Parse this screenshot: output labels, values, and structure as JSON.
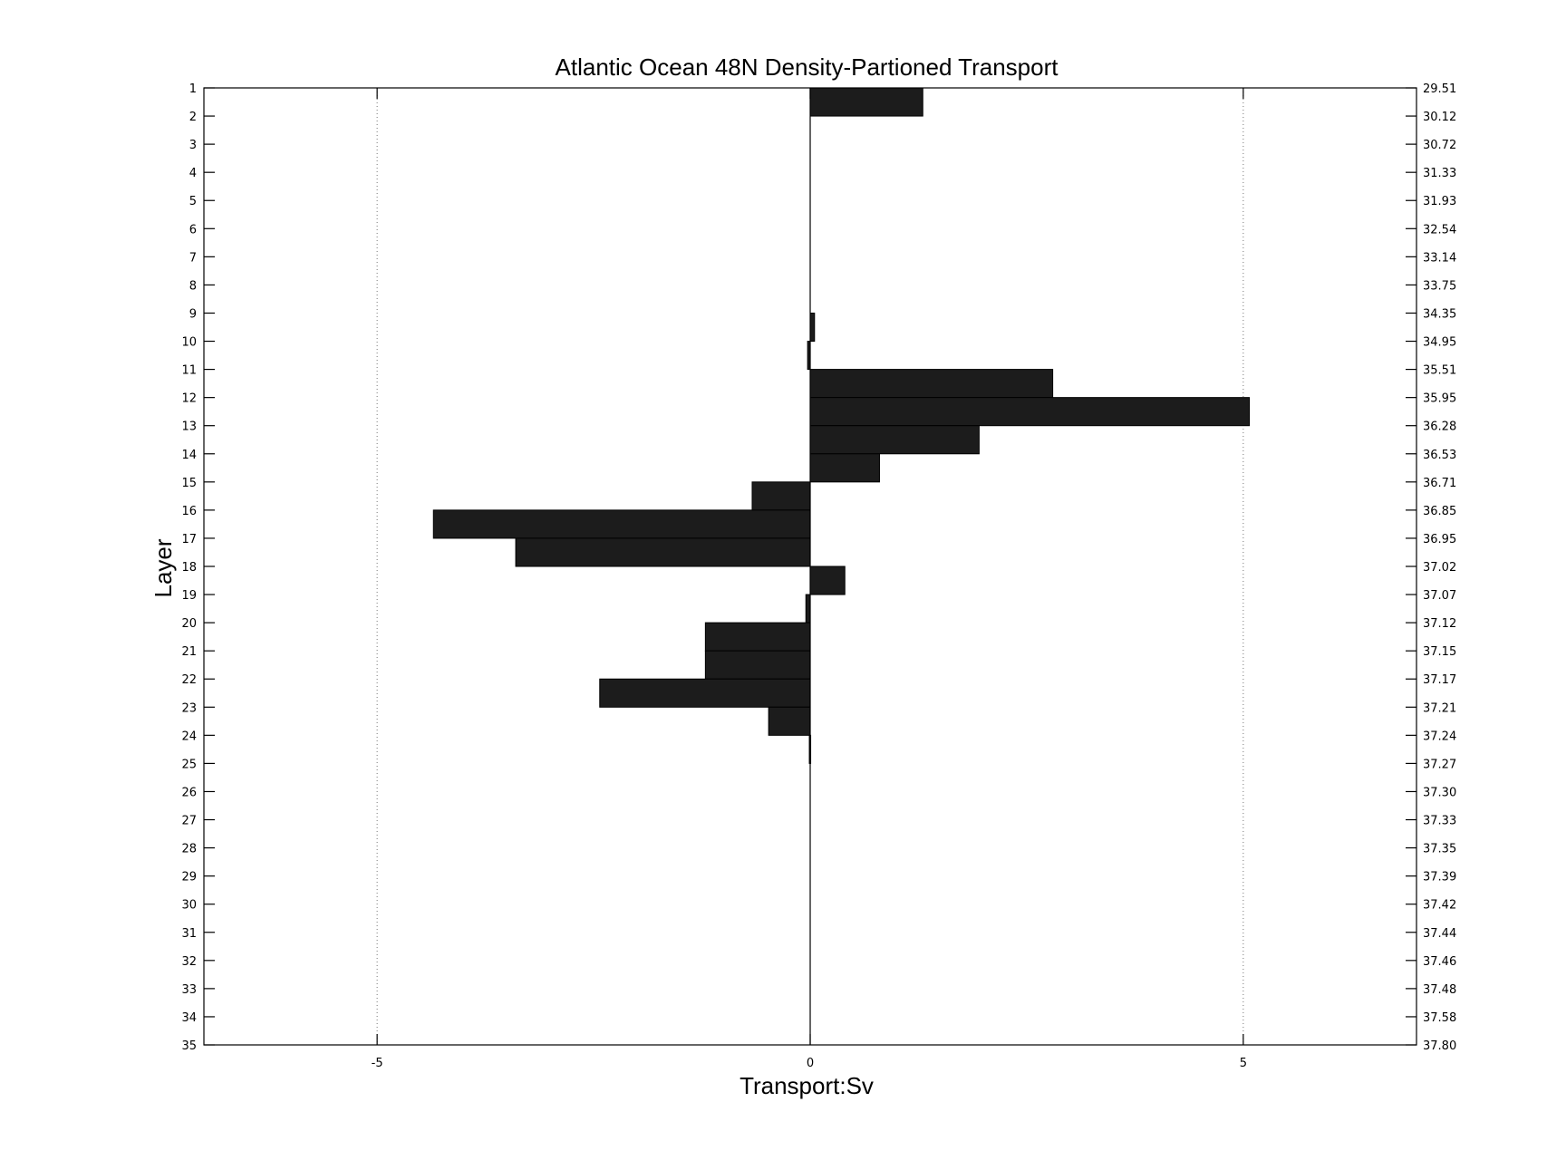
{
  "chart_data": {
    "type": "bar",
    "orientation": "horizontal",
    "title": "Atlantic Ocean 48N Density-Partioned Transport",
    "xlabel": "Transport:Sv",
    "ylabel": "Layer",
    "xlim": [
      -7,
      7
    ],
    "ylim": [
      1,
      35
    ],
    "x_ticks": [
      -5,
      0,
      5
    ],
    "x_tick_labels": [
      "-5",
      "0",
      "5"
    ],
    "grid": "vertical dotted lines at x ticks",
    "layers": [
      "1",
      "2",
      "3",
      "4",
      "5",
      "6",
      "7",
      "8",
      "9",
      "10",
      "11",
      "12",
      "13",
      "14",
      "15",
      "16",
      "17",
      "18",
      "19",
      "20",
      "21",
      "22",
      "23",
      "24",
      "25",
      "26",
      "27",
      "28",
      "29",
      "30",
      "31",
      "32",
      "33",
      "34",
      "35"
    ],
    "right_tick_labels": [
      "29.51",
      "30.12",
      "30.72",
      "31.33",
      "31.93",
      "32.54",
      "33.14",
      "33.75",
      "34.35",
      "34.95",
      "35.51",
      "35.95",
      "36.28",
      "36.53",
      "36.71",
      "36.85",
      "36.95",
      "37.02",
      "37.07",
      "37.12",
      "37.15",
      "37.17",
      "37.21",
      "37.24",
      "37.27",
      "37.30",
      "37.33",
      "37.35",
      "37.39",
      "37.42",
      "37.44",
      "37.46",
      "37.48",
      "37.58",
      "37.80"
    ],
    "values": [
      1.3,
      0,
      0,
      0,
      0,
      0,
      0,
      0,
      0.05,
      -0.03,
      2.8,
      5.07,
      1.95,
      0.8,
      -0.67,
      -4.35,
      -3.4,
      0.4,
      -0.05,
      -1.21,
      -1.21,
      -2.43,
      -0.48,
      -0.01,
      0,
      0,
      0,
      0,
      0,
      0,
      0,
      0,
      0,
      0
    ],
    "bar_color": "#1c1c1c"
  }
}
